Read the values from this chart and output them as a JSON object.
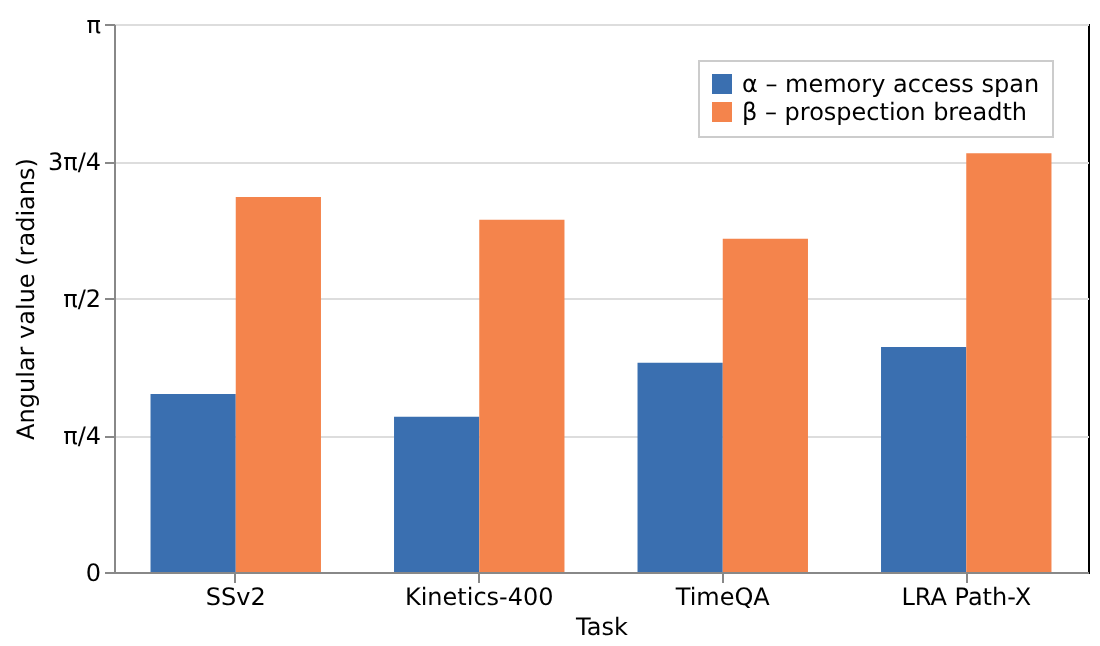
{
  "chart_data": {
    "type": "bar",
    "xlabel": "Task",
    "ylabel": "Angular value (radians)",
    "categories": [
      "SSv2",
      "Kinetics-400",
      "TimeQA",
      "LRA Path-X"
    ],
    "series": [
      {
        "name": "α – memory access span",
        "color": "#3a6fb0",
        "values": [
          1.02,
          0.89,
          1.2,
          1.29
        ]
      },
      {
        "name": "β – prospection breadth",
        "color": "#f4844c",
        "values": [
          2.15,
          2.02,
          1.91,
          2.4
        ]
      }
    ],
    "ylim": [
      0,
      3.1416
    ],
    "yticks": [
      {
        "value": 0,
        "label": "0"
      },
      {
        "value": 0.7854,
        "label": "π/4"
      },
      {
        "value": 1.5708,
        "label": "π/2"
      },
      {
        "value": 2.3562,
        "label": "3π/4"
      },
      {
        "value": 3.1416,
        "label": "π"
      }
    ],
    "grid": "y",
    "legend": "top right"
  }
}
